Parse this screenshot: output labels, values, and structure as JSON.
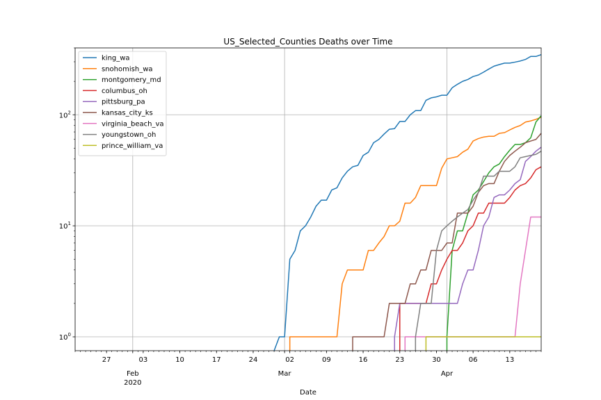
{
  "chart_data": {
    "type": "line",
    "title": "US_Selected_Counties Deaths over Time",
    "xlabel": "Date",
    "ylabel": "",
    "yscale": "log",
    "ylim": [
      0.75,
      400
    ],
    "xlim": [
      "2020-01-21",
      "2020-04-19"
    ],
    "grid": true,
    "legend": "upper-left",
    "x_ticks": [
      {
        "date": "2020-01-27",
        "label": "27"
      },
      {
        "date": "2020-02-01",
        "label": "Feb",
        "major": true,
        "sublabel": "2020"
      },
      {
        "date": "2020-02-03",
        "label": "03"
      },
      {
        "date": "2020-02-10",
        "label": "10"
      },
      {
        "date": "2020-02-17",
        "label": "17"
      },
      {
        "date": "2020-02-24",
        "label": "24"
      },
      {
        "date": "2020-03-01",
        "label": "Mar",
        "major": true
      },
      {
        "date": "2020-03-02",
        "label": "02"
      },
      {
        "date": "2020-03-09",
        "label": "09"
      },
      {
        "date": "2020-03-16",
        "label": "16"
      },
      {
        "date": "2020-03-23",
        "label": "23"
      },
      {
        "date": "2020-03-30",
        "label": "30"
      },
      {
        "date": "2020-04-01",
        "label": "Apr",
        "major": true
      },
      {
        "date": "2020-04-06",
        "label": "06"
      },
      {
        "date": "2020-04-13",
        "label": "13"
      }
    ],
    "y_ticks": [
      {
        "value": 1,
        "base": "10",
        "exp": "0"
      },
      {
        "value": 10,
        "base": "10",
        "exp": "1"
      },
      {
        "value": 100,
        "base": "10",
        "exp": "2"
      }
    ],
    "series": [
      {
        "name": "king_wa",
        "color": "#1f77b4",
        "points": [
          [
            "2020-02-28",
            0.75
          ],
          [
            "2020-02-29",
            1
          ],
          [
            "2020-03-01",
            1
          ],
          [
            "2020-03-02",
            5
          ],
          [
            "2020-03-03",
            6
          ],
          [
            "2020-03-04",
            9
          ],
          [
            "2020-03-05",
            10
          ],
          [
            "2020-03-06",
            12
          ],
          [
            "2020-03-07",
            15
          ],
          [
            "2020-03-08",
            17
          ],
          [
            "2020-03-09",
            17
          ],
          [
            "2020-03-10",
            21
          ],
          [
            "2020-03-11",
            22
          ],
          [
            "2020-03-12",
            27
          ],
          [
            "2020-03-13",
            31
          ],
          [
            "2020-03-14",
            34
          ],
          [
            "2020-03-15",
            35
          ],
          [
            "2020-03-16",
            43
          ],
          [
            "2020-03-17",
            46
          ],
          [
            "2020-03-18",
            56
          ],
          [
            "2020-03-19",
            60
          ],
          [
            "2020-03-20",
            67
          ],
          [
            "2020-03-21",
            74
          ],
          [
            "2020-03-22",
            75
          ],
          [
            "2020-03-23",
            87
          ],
          [
            "2020-03-24",
            87
          ],
          [
            "2020-03-25",
            100
          ],
          [
            "2020-03-26",
            109
          ],
          [
            "2020-03-27",
            109
          ],
          [
            "2020-03-28",
            135
          ],
          [
            "2020-03-29",
            142
          ],
          [
            "2020-03-30",
            145
          ],
          [
            "2020-03-31",
            150
          ],
          [
            "2020-04-01",
            150
          ],
          [
            "2020-04-02",
            175
          ],
          [
            "2020-04-03",
            188
          ],
          [
            "2020-04-04",
            200
          ],
          [
            "2020-04-05",
            208
          ],
          [
            "2020-04-06",
            221
          ],
          [
            "2020-04-07",
            228
          ],
          [
            "2020-04-08",
            242
          ],
          [
            "2020-04-09",
            258
          ],
          [
            "2020-04-10",
            274
          ],
          [
            "2020-04-11",
            283
          ],
          [
            "2020-04-12",
            292
          ],
          [
            "2020-04-13",
            292
          ],
          [
            "2020-04-14",
            298
          ],
          [
            "2020-04-15",
            305
          ],
          [
            "2020-04-16",
            315
          ],
          [
            "2020-04-17",
            335
          ],
          [
            "2020-04-18",
            335
          ],
          [
            "2020-04-19",
            348
          ]
        ]
      },
      {
        "name": "snohomish_wa",
        "color": "#ff7f0e",
        "points": [
          [
            "2020-03-02",
            0.75
          ],
          [
            "2020-03-02",
            1
          ],
          [
            "2020-03-11",
            1
          ],
          [
            "2020-03-12",
            3
          ],
          [
            "2020-03-13",
            4
          ],
          [
            "2020-03-14",
            4
          ],
          [
            "2020-03-15",
            4
          ],
          [
            "2020-03-16",
            4
          ],
          [
            "2020-03-17",
            6
          ],
          [
            "2020-03-18",
            6
          ],
          [
            "2020-03-19",
            7
          ],
          [
            "2020-03-20",
            8
          ],
          [
            "2020-03-21",
            10
          ],
          [
            "2020-03-22",
            10
          ],
          [
            "2020-03-23",
            11
          ],
          [
            "2020-03-24",
            16
          ],
          [
            "2020-03-25",
            16
          ],
          [
            "2020-03-26",
            18
          ],
          [
            "2020-03-27",
            23
          ],
          [
            "2020-03-28",
            23
          ],
          [
            "2020-03-29",
            23
          ],
          [
            "2020-03-30",
            23
          ],
          [
            "2020-03-31",
            33
          ],
          [
            "2020-04-01",
            40
          ],
          [
            "2020-04-02",
            41
          ],
          [
            "2020-04-03",
            42
          ],
          [
            "2020-04-04",
            46
          ],
          [
            "2020-04-05",
            49
          ],
          [
            "2020-04-06",
            58
          ],
          [
            "2020-04-07",
            61
          ],
          [
            "2020-04-08",
            63
          ],
          [
            "2020-04-09",
            64
          ],
          [
            "2020-04-10",
            64
          ],
          [
            "2020-04-11",
            68
          ],
          [
            "2020-04-12",
            69
          ],
          [
            "2020-04-13",
            73
          ],
          [
            "2020-04-14",
            77
          ],
          [
            "2020-04-15",
            80
          ],
          [
            "2020-04-16",
            86
          ],
          [
            "2020-04-17",
            88
          ],
          [
            "2020-04-18",
            91
          ],
          [
            "2020-04-19",
            95
          ]
        ]
      },
      {
        "name": "montgomery_md",
        "color": "#2ca02c",
        "points": [
          [
            "2020-04-01",
            0.75
          ],
          [
            "2020-04-01",
            1
          ],
          [
            "2020-04-02",
            6
          ],
          [
            "2020-04-03",
            9
          ],
          [
            "2020-04-04",
            9
          ],
          [
            "2020-04-05",
            13
          ],
          [
            "2020-04-06",
            19
          ],
          [
            "2020-04-07",
            21
          ],
          [
            "2020-04-08",
            25
          ],
          [
            "2020-04-09",
            30
          ],
          [
            "2020-04-10",
            34
          ],
          [
            "2020-04-11",
            36
          ],
          [
            "2020-04-12",
            42
          ],
          [
            "2020-04-13",
            48
          ],
          [
            "2020-04-14",
            54
          ],
          [
            "2020-04-15",
            54
          ],
          [
            "2020-04-16",
            56
          ],
          [
            "2020-04-17",
            62
          ],
          [
            "2020-04-18",
            86
          ],
          [
            "2020-04-19",
            98
          ]
        ]
      },
      {
        "name": "columbus_oh",
        "color": "#d62728",
        "points": [
          [
            "2020-03-23",
            0.75
          ],
          [
            "2020-03-23",
            2
          ],
          [
            "2020-03-28",
            2
          ],
          [
            "2020-03-29",
            3
          ],
          [
            "2020-03-30",
            3
          ],
          [
            "2020-03-31",
            4
          ],
          [
            "2020-04-01",
            5
          ],
          [
            "2020-04-02",
            6
          ],
          [
            "2020-04-03",
            6
          ],
          [
            "2020-04-04",
            7
          ],
          [
            "2020-04-05",
            9
          ],
          [
            "2020-04-06",
            10
          ],
          [
            "2020-04-07",
            13
          ],
          [
            "2020-04-08",
            13
          ],
          [
            "2020-04-09",
            16
          ],
          [
            "2020-04-10",
            16
          ],
          [
            "2020-04-11",
            16
          ],
          [
            "2020-04-12",
            16
          ],
          [
            "2020-04-13",
            18
          ],
          [
            "2020-04-14",
            21
          ],
          [
            "2020-04-15",
            23
          ],
          [
            "2020-04-16",
            24
          ],
          [
            "2020-04-17",
            27
          ],
          [
            "2020-04-18",
            32
          ],
          [
            "2020-04-19",
            34
          ]
        ]
      },
      {
        "name": "pittsburg_pa",
        "color": "#9467bd",
        "points": [
          [
            "2020-03-22",
            0.75
          ],
          [
            "2020-03-22",
            1
          ],
          [
            "2020-03-23",
            2
          ],
          [
            "2020-04-03",
            2
          ],
          [
            "2020-04-04",
            3
          ],
          [
            "2020-04-05",
            4
          ],
          [
            "2020-04-06",
            4
          ],
          [
            "2020-04-07",
            6
          ],
          [
            "2020-04-08",
            10
          ],
          [
            "2020-04-09",
            12
          ],
          [
            "2020-04-10",
            18
          ],
          [
            "2020-04-11",
            19
          ],
          [
            "2020-04-12",
            19
          ],
          [
            "2020-04-13",
            21
          ],
          [
            "2020-04-14",
            24
          ],
          [
            "2020-04-15",
            26
          ],
          [
            "2020-04-16",
            38
          ],
          [
            "2020-04-17",
            42
          ],
          [
            "2020-04-18",
            47
          ],
          [
            "2020-04-19",
            51
          ]
        ]
      },
      {
        "name": "kansas_city_ks",
        "color": "#8c564b",
        "points": [
          [
            "2020-03-14",
            0.75
          ],
          [
            "2020-03-14",
            1
          ],
          [
            "2020-03-20",
            1
          ],
          [
            "2020-03-21",
            2
          ],
          [
            "2020-03-24",
            2
          ],
          [
            "2020-03-25",
            3
          ],
          [
            "2020-03-26",
            3
          ],
          [
            "2020-03-27",
            4
          ],
          [
            "2020-03-28",
            4
          ],
          [
            "2020-03-29",
            6
          ],
          [
            "2020-03-30",
            6
          ],
          [
            "2020-03-31",
            6
          ],
          [
            "2020-04-01",
            7
          ],
          [
            "2020-04-02",
            7
          ],
          [
            "2020-04-03",
            13
          ],
          [
            "2020-04-04",
            13
          ],
          [
            "2020-04-05",
            13
          ],
          [
            "2020-04-06",
            15
          ],
          [
            "2020-04-07",
            20
          ],
          [
            "2020-04-08",
            23
          ],
          [
            "2020-04-09",
            24
          ],
          [
            "2020-04-10",
            24
          ],
          [
            "2020-04-11",
            31
          ],
          [
            "2020-04-12",
            38
          ],
          [
            "2020-04-13",
            43
          ],
          [
            "2020-04-14",
            47
          ],
          [
            "2020-04-15",
            51
          ],
          [
            "2020-04-16",
            56
          ],
          [
            "2020-04-17",
            58
          ],
          [
            "2020-04-18",
            60
          ],
          [
            "2020-04-19",
            68
          ]
        ]
      },
      {
        "name": "virginia_beach_va",
        "color": "#e377c2",
        "points": [
          [
            "2020-03-24",
            0.75
          ],
          [
            "2020-03-24",
            1
          ],
          [
            "2020-04-14",
            1
          ],
          [
            "2020-04-15",
            3
          ],
          [
            "2020-04-16",
            6
          ],
          [
            "2020-04-17",
            12
          ],
          [
            "2020-04-18",
            12
          ],
          [
            "2020-04-19",
            12
          ]
        ]
      },
      {
        "name": "youngstown_oh",
        "color": "#7f7f7f",
        "points": [
          [
            "2020-03-26",
            0.75
          ],
          [
            "2020-03-26",
            1
          ],
          [
            "2020-03-27",
            2
          ],
          [
            "2020-03-29",
            2
          ],
          [
            "2020-03-30",
            6
          ],
          [
            "2020-03-31",
            9
          ],
          [
            "2020-04-01",
            10
          ],
          [
            "2020-04-02",
            11
          ],
          [
            "2020-04-03",
            12
          ],
          [
            "2020-04-04",
            13
          ],
          [
            "2020-04-05",
            14
          ],
          [
            "2020-04-06",
            17
          ],
          [
            "2020-04-07",
            20
          ],
          [
            "2020-04-08",
            28
          ],
          [
            "2020-04-09",
            28
          ],
          [
            "2020-04-10",
            28
          ],
          [
            "2020-04-11",
            31
          ],
          [
            "2020-04-12",
            31
          ],
          [
            "2020-04-13",
            31
          ],
          [
            "2020-04-14",
            34
          ],
          [
            "2020-04-15",
            41
          ],
          [
            "2020-04-16",
            42
          ],
          [
            "2020-04-17",
            43
          ],
          [
            "2020-04-18",
            44
          ],
          [
            "2020-04-19",
            47
          ]
        ]
      },
      {
        "name": "prince_william_va",
        "color": "#bcbd22",
        "points": [
          [
            "2020-03-28",
            0.75
          ],
          [
            "2020-03-28",
            1
          ],
          [
            "2020-04-19",
            1
          ]
        ]
      }
    ]
  }
}
